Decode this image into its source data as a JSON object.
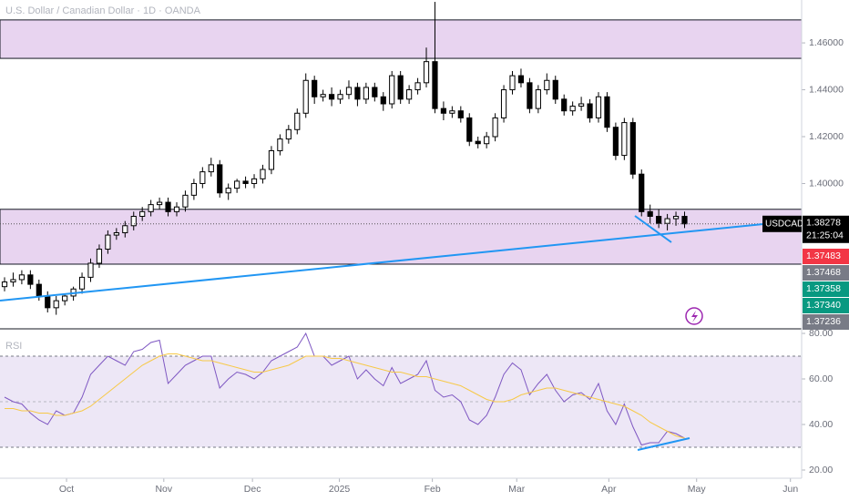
{
  "chart_data": [
    {
      "type": "candlestick",
      "title": "U.S. Dollar / Canadian Dollar · 1D · OANDA",
      "symbol": "USDCAD",
      "last_price": 1.38278,
      "countdown": "21:25:04",
      "badges": [
        {
          "label": "1.37483",
          "color": "#f23645"
        },
        {
          "label": "1.37468",
          "color": "#787b86"
        },
        {
          "label": "1.37358",
          "color": "#089981"
        },
        {
          "label": "1.37340",
          "color": "#089981"
        },
        {
          "label": "1.37236",
          "color": "#787b86"
        }
      ],
      "xlim": [
        -0.53,
        92.6
      ],
      "ylim": [
        1.338,
        1.4783
      ],
      "yticks": [
        {
          "value": 1.4,
          "label": "1.40000"
        },
        {
          "value": 1.42,
          "label": "1.42000"
        },
        {
          "value": 1.44,
          "label": "1.44000"
        },
        {
          "value": 1.46,
          "label": "1.46000"
        }
      ],
      "zones": [
        [
          1.4534,
          1.4698
        ],
        [
          1.3656,
          1.389
        ]
      ],
      "zone_color": "#e8d4f0",
      "up_color": "#ffffff",
      "down_color": "#000000",
      "open": [
        1.356,
        1.358,
        1.359,
        1.361,
        1.357,
        1.352,
        1.347,
        1.35,
        1.352,
        1.355,
        1.36,
        1.366,
        1.372,
        1.378,
        1.379,
        1.382,
        1.386,
        1.388,
        1.391,
        1.392,
        1.388,
        1.39,
        1.395,
        1.4,
        1.405,
        1.408,
        1.396,
        1.398,
        1.401,
        1.4,
        1.402,
        1.406,
        1.414,
        1.419,
        1.423,
        1.43,
        1.444,
        1.437,
        1.438,
        1.436,
        1.438,
        1.441,
        1.436,
        1.441,
        1.437,
        1.434,
        1.446,
        1.436,
        1.44,
        1.443,
        1.452,
        1.432,
        1.43,
        1.431,
        1.428,
        1.418,
        1.417,
        1.42,
        1.428,
        1.44,
        1.446,
        1.443,
        1.432,
        1.44,
        1.444,
        1.436,
        1.431,
        1.433,
        1.434,
        1.428,
        1.437,
        1.424,
        1.412,
        1.426,
        1.404,
        1.388,
        1.386,
        1.383,
        1.385,
        1.386
      ],
      "high": [
        1.36,
        1.362,
        1.363,
        1.363,
        1.359,
        1.354,
        1.352,
        1.353,
        1.356,
        1.362,
        1.368,
        1.374,
        1.38,
        1.381,
        1.384,
        1.388,
        1.39,
        1.393,
        1.394,
        1.394,
        1.392,
        1.397,
        1.402,
        1.407,
        1.411,
        1.41,
        1.4,
        1.402,
        1.403,
        1.404,
        1.408,
        1.416,
        1.421,
        1.425,
        1.432,
        1.447,
        1.446,
        1.44,
        1.441,
        1.44,
        1.444,
        1.443,
        1.443,
        1.443,
        1.439,
        1.448,
        1.448,
        1.442,
        1.445,
        1.458,
        1.4775,
        1.435,
        1.433,
        1.433,
        1.43,
        1.42,
        1.422,
        1.43,
        1.442,
        1.448,
        1.449,
        1.445,
        1.442,
        1.447,
        1.446,
        1.438,
        1.435,
        1.437,
        1.436,
        1.439,
        1.439,
        1.426,
        1.428,
        1.428,
        1.406,
        1.391,
        1.389,
        1.387,
        1.388,
        1.388
      ],
      "low": [
        1.354,
        1.356,
        1.357,
        1.355,
        1.35,
        1.345,
        1.344,
        1.348,
        1.35,
        1.353,
        1.358,
        1.364,
        1.37,
        1.376,
        1.377,
        1.38,
        1.384,
        1.386,
        1.389,
        1.386,
        1.386,
        1.388,
        1.393,
        1.398,
        1.403,
        1.394,
        1.393,
        1.396,
        1.398,
        1.398,
        1.4,
        1.404,
        1.412,
        1.417,
        1.421,
        1.428,
        1.434,
        1.435,
        1.433,
        1.434,
        1.436,
        1.433,
        1.434,
        1.435,
        1.431,
        1.432,
        1.434,
        1.434,
        1.438,
        1.441,
        1.43,
        1.427,
        1.428,
        1.426,
        1.416,
        1.415,
        1.415,
        1.418,
        1.426,
        1.438,
        1.441,
        1.43,
        1.43,
        1.438,
        1.434,
        1.429,
        1.429,
        1.431,
        1.426,
        1.426,
        1.422,
        1.41,
        1.41,
        1.402,
        1.386,
        1.383,
        1.381,
        1.38,
        1.382,
        1.381
      ],
      "close": [
        1.358,
        1.359,
        1.361,
        1.357,
        1.352,
        1.347,
        1.35,
        1.352,
        1.355,
        1.36,
        1.366,
        1.372,
        1.378,
        1.379,
        1.382,
        1.386,
        1.388,
        1.391,
        1.392,
        1.388,
        1.39,
        1.395,
        1.4,
        1.405,
        1.408,
        1.396,
        1.398,
        1.401,
        1.4,
        1.402,
        1.406,
        1.414,
        1.419,
        1.423,
        1.43,
        1.444,
        1.437,
        1.438,
        1.436,
        1.438,
        1.441,
        1.436,
        1.441,
        1.437,
        1.434,
        1.446,
        1.436,
        1.44,
        1.443,
        1.452,
        1.432,
        1.43,
        1.431,
        1.428,
        1.418,
        1.417,
        1.42,
        1.428,
        1.44,
        1.446,
        1.443,
        1.432,
        1.44,
        1.444,
        1.436,
        1.431,
        1.433,
        1.434,
        1.428,
        1.437,
        1.424,
        1.412,
        1.426,
        1.404,
        1.388,
        1.386,
        1.383,
        1.385,
        1.386,
        1.3828
      ]
    },
    {
      "type": "line",
      "title": "RSI",
      "xlim": [
        -0.53,
        92.6
      ],
      "ylim": [
        16.4,
        81.6
      ],
      "yticks": [
        {
          "value": 20,
          "label": "20.00"
        },
        {
          "value": 40,
          "label": "40.00"
        },
        {
          "value": 60,
          "label": "60.00"
        },
        {
          "value": 80,
          "label": "80.00"
        }
      ],
      "bands": [
        30,
        70
      ],
      "midline": 50,
      "band_color": "#ede7f6",
      "xticks": [
        {
          "value": 7.2,
          "label": "Oct"
        },
        {
          "value": 18.5,
          "label": "Nov"
        },
        {
          "value": 28.8,
          "label": "Dec"
        },
        {
          "value": 38.9,
          "label": "2025"
        },
        {
          "value": 49.7,
          "label": "Feb"
        },
        {
          "value": 59.5,
          "label": "Mar"
        },
        {
          "value": 70.2,
          "label": "Apr"
        },
        {
          "value": 80.4,
          "label": "May"
        },
        {
          "value": 91.3,
          "label": "Jun"
        }
      ],
      "series": [
        {
          "color": "#7e57c2",
          "values": [
            52,
            50,
            49,
            45,
            42,
            40,
            46,
            44,
            45,
            52,
            62,
            66,
            70,
            68,
            66,
            72,
            73,
            76,
            77,
            58,
            62,
            66,
            68,
            70,
            70,
            56,
            60,
            63,
            62,
            60,
            63,
            68,
            70,
            72,
            74,
            80,
            70,
            70,
            66,
            68,
            70,
            60,
            64,
            60,
            57,
            65,
            58,
            60,
            62,
            68,
            55,
            52,
            53,
            50,
            42,
            40,
            44,
            52,
            62,
            67,
            64,
            53,
            58,
            62,
            55,
            50,
            53,
            54,
            51,
            58,
            46,
            40,
            49,
            39,
            31,
            32,
            32,
            37,
            36,
            34
          ]
        },
        {
          "color": "#f7c948",
          "values": [
            47,
            47,
            46,
            46,
            45,
            45,
            44,
            44,
            45,
            46,
            48,
            51,
            54,
            57,
            60,
            63,
            66,
            68,
            70,
            71,
            71,
            70,
            69,
            68,
            68,
            67,
            66,
            65,
            64,
            63,
            63,
            64,
            65,
            66,
            68,
            70,
            70,
            70,
            69,
            69,
            68,
            67,
            66,
            65,
            64,
            63,
            63,
            62,
            61,
            61,
            60,
            59,
            58,
            57,
            55,
            53,
            51,
            50,
            50,
            51,
            53,
            54,
            55,
            56,
            56,
            55,
            54,
            53,
            52,
            51,
            50,
            49,
            48,
            46,
            44,
            41,
            39,
            37,
            35,
            34
          ]
        }
      ]
    }
  ]
}
